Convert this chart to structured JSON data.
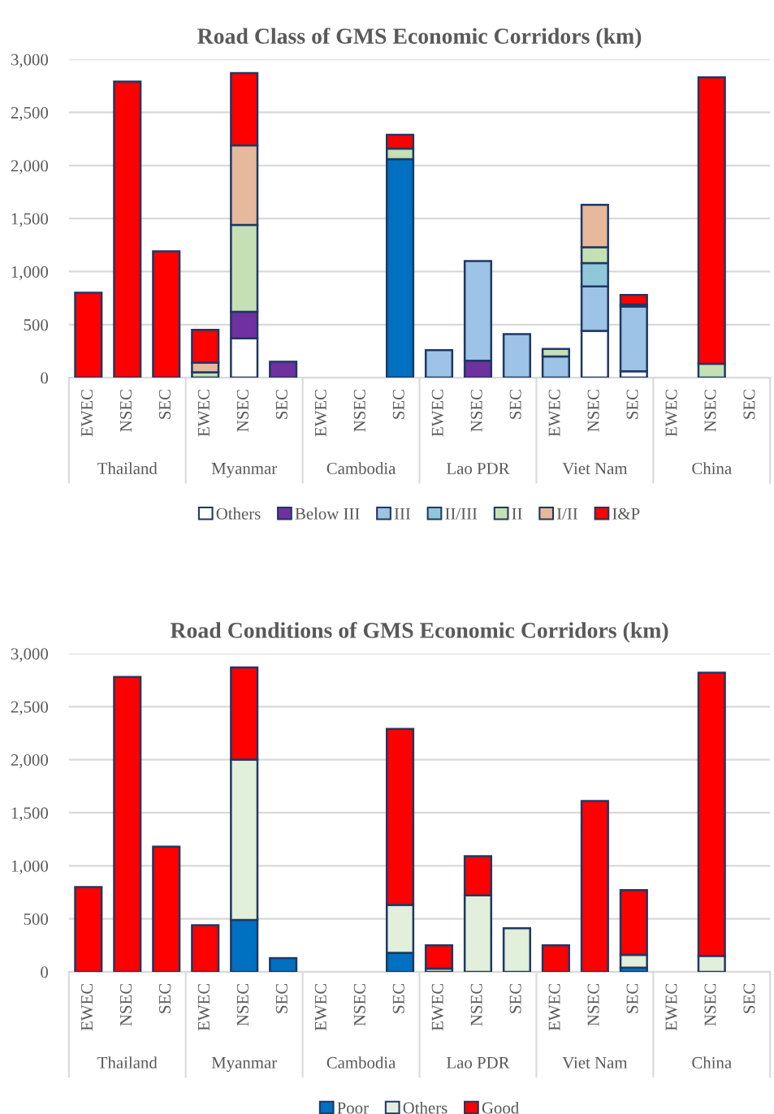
{
  "chart_data": [
    {
      "type": "bar",
      "title": "Road Class of GMS Economic Corridors (km)",
      "stacked": true,
      "legend": "bottom",
      "grid": "y",
      "categories": [
        "EWEC",
        "NSEC",
        "SEC",
        "EWEC",
        "NSEC",
        "SEC",
        "EWEC",
        "NSEC",
        "SEC",
        "EWEC",
        "NSEC",
        "SEC",
        "EWEC",
        "NSEC",
        "SEC",
        "EWEC",
        "NSEC",
        "SEC"
      ],
      "annotations": [
        "Thailand",
        "Myanmar",
        "Cambodia",
        "Lao PDR",
        "Viet Nam",
        "China"
      ],
      "ylim": [
        0,
        3000
      ],
      "yticks": [
        {
          "value": 0,
          "label": "0"
        },
        {
          "value": 500,
          "label": "500"
        },
        {
          "value": 1000,
          "label": "1,000"
        },
        {
          "value": 1500,
          "label": "1,500"
        },
        {
          "value": 2000,
          "label": "2,000"
        },
        {
          "value": 2500,
          "label": "2,500"
        },
        {
          "value": 3000,
          "label": "3,000"
        }
      ],
      "series": [
        {
          "name": "Others",
          "color": "#ffffff",
          "values": [
            null,
            null,
            null,
            null,
            370,
            null,
            null,
            null,
            null,
            null,
            null,
            null,
            null,
            440,
            60,
            null,
            null,
            null
          ]
        },
        {
          "name": "Below III",
          "color": "#7030a0",
          "values": [
            null,
            null,
            null,
            null,
            250,
            150,
            null,
            null,
            null,
            null,
            160,
            null,
            null,
            null,
            null,
            null,
            null,
            null
          ]
        },
        {
          "name": "III",
          "color": "#9dc3e6",
          "values": [
            null,
            null,
            null,
            null,
            null,
            null,
            null,
            null,
            null,
            260,
            940,
            410,
            200,
            420,
            610,
            null,
            null,
            null
          ]
        },
        {
          "color": "#0070c0",
          "values": [
            null,
            null,
            null,
            null,
            null,
            null,
            null,
            null,
            2060,
            null,
            null,
            null,
            null,
            null,
            null,
            null,
            null,
            null
          ]
        },
        {
          "name": "II/III",
          "color": "#8fc9d9",
          "values": [
            null,
            null,
            null,
            null,
            null,
            null,
            null,
            null,
            null,
            null,
            null,
            null,
            null,
            220,
            null,
            null,
            null,
            null
          ]
        },
        {
          "name": "II",
          "color": "#c5e0b4",
          "values": [
            null,
            null,
            null,
            50,
            820,
            null,
            null,
            null,
            100,
            null,
            null,
            null,
            70,
            150,
            20,
            null,
            130,
            null
          ]
        },
        {
          "name": "I/II",
          "color": "#e6b89c",
          "values": [
            null,
            null,
            null,
            90,
            750,
            null,
            null,
            null,
            null,
            null,
            null,
            null,
            null,
            400,
            null,
            null,
            null,
            null
          ]
        },
        {
          "name": "I&P",
          "color": "#ff0000",
          "values": [
            800,
            2790,
            1190,
            310,
            680,
            null,
            null,
            null,
            130,
            null,
            null,
            null,
            null,
            null,
            90,
            null,
            2700,
            null
          ]
        }
      ]
    },
    {
      "type": "bar",
      "title": "Road Conditions of GMS Economic Corridors (km)",
      "stacked": true,
      "legend": "bottom",
      "grid": "y",
      "categories": [
        "EWEC",
        "NSEC",
        "SEC",
        "EWEC",
        "NSEC",
        "SEC",
        "EWEC",
        "NSEC",
        "SEC",
        "EWEC",
        "NSEC",
        "SEC",
        "EWEC",
        "NSEC",
        "SEC",
        "EWEC",
        "NSEC",
        "SEC"
      ],
      "annotations": [
        "Thailand",
        "Myanmar",
        "Cambodia",
        "Lao PDR",
        "Viet Nam",
        "China"
      ],
      "ylim": [
        0,
        3000
      ],
      "yticks": [
        {
          "value": 0,
          "label": "0"
        },
        {
          "value": 500,
          "label": "500"
        },
        {
          "value": 1000,
          "label": "1,000"
        },
        {
          "value": 1500,
          "label": "1,500"
        },
        {
          "value": 2000,
          "label": "2,000"
        },
        {
          "value": 2500,
          "label": "2,500"
        },
        {
          "value": 3000,
          "label": "3,000"
        }
      ],
      "series": [
        {
          "name": "Poor",
          "color": "#0070c0",
          "values": [
            null,
            null,
            null,
            null,
            490,
            130,
            null,
            null,
            180,
            null,
            null,
            null,
            null,
            null,
            40,
            null,
            null,
            null
          ]
        },
        {
          "name": "Others",
          "color": "#e2efda",
          "values": [
            null,
            null,
            null,
            null,
            1510,
            null,
            null,
            null,
            450,
            30,
            720,
            410,
            null,
            null,
            120,
            null,
            150,
            null
          ]
        },
        {
          "name": "Good",
          "color": "#ff0000",
          "values": [
            800,
            2780,
            1180,
            440,
            870,
            null,
            null,
            null,
            1660,
            220,
            370,
            null,
            250,
            1610,
            610,
            null,
            2670,
            null
          ]
        }
      ]
    }
  ]
}
